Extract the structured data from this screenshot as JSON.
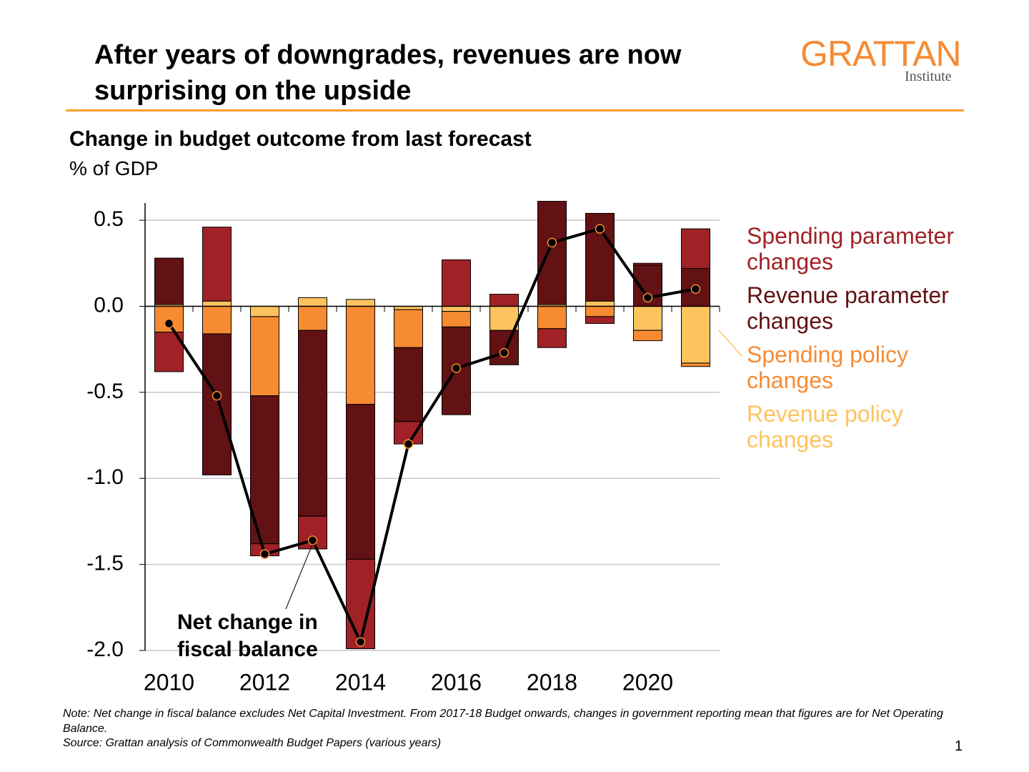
{
  "header": {
    "title": "After years of downgrades, revenues are now surprising on the upside",
    "logo": "GRATTAN",
    "logo_sub": "Institute"
  },
  "chart_data": {
    "type": "bar",
    "subtitle": "Change in budget outcome from last forecast",
    "unit": "% of GDP",
    "x": [
      2010,
      2011,
      2012,
      2013,
      2014,
      2015,
      2016,
      2017,
      2018,
      2019,
      2020,
      2021
    ],
    "xlim": [
      2009.5,
      2021.5
    ],
    "xticks": [
      2010,
      2012,
      2014,
      2016,
      2018,
      2020
    ],
    "ylim": [
      -2.0,
      0.6
    ],
    "yticks": [
      {
        "value": 0.5,
        "label": "0.5"
      },
      {
        "value": 0,
        "label": "0.0"
      },
      {
        "value": -0.5,
        "label": "-0.5"
      },
      {
        "value": -1,
        "label": "-1.0"
      },
      {
        "value": -1.5,
        "label": "-1.5"
      },
      {
        "value": -2,
        "label": "-2.0"
      }
    ],
    "grid": true,
    "stacked": true,
    "series": [
      {
        "name": "Revenue policy changes",
        "color": "#fdc35f",
        "values": [
          0.01,
          0.03,
          -0.06,
          0.05,
          0.04,
          -0.02,
          -0.03,
          -0.14,
          0.01,
          0.03,
          -0.14,
          -0.33
        ]
      },
      {
        "name": "Spending policy changes",
        "color": "#f68b33",
        "values": [
          -0.15,
          -0.16,
          -0.46,
          -0.14,
          -0.57,
          -0.22,
          -0.09,
          0,
          -0.13,
          -0.06,
          -0.06,
          -0.02
        ]
      },
      {
        "name": "Revenue parameter changes",
        "color": "#621214",
        "values": [
          0.27,
          -0.82,
          -0.86,
          -1.08,
          -0.9,
          -0.43,
          -0.51,
          -0.2,
          0.6,
          0.51,
          0.24,
          0.22
        ]
      },
      {
        "name": "Spending parameter changes",
        "color": "#a02226",
        "values": [
          -0.23,
          0.43,
          -0.07,
          -0.19,
          -0.52,
          -0.13,
          0.27,
          0.07,
          -0.11,
          -0.04,
          0.01,
          0.23
        ]
      }
    ],
    "line": {
      "name": "Net change in fiscal balance",
      "color": "#000000",
      "values": [
        -0.1,
        -0.52,
        -1.44,
        -1.36,
        -1.95,
        -0.8,
        -0.36,
        -0.27,
        0.37,
        0.45,
        0.05,
        0.1
      ]
    }
  },
  "footer": {
    "note": "Note: Net change in fiscal balance excludes Net Capital Investment. From 2017-18 Budget onwards, changes in government reporting mean that figures are for Net Operating Balance.",
    "source": "Source: Grattan analysis of Commonwealth Budget Papers (various years)",
    "page": "1"
  }
}
